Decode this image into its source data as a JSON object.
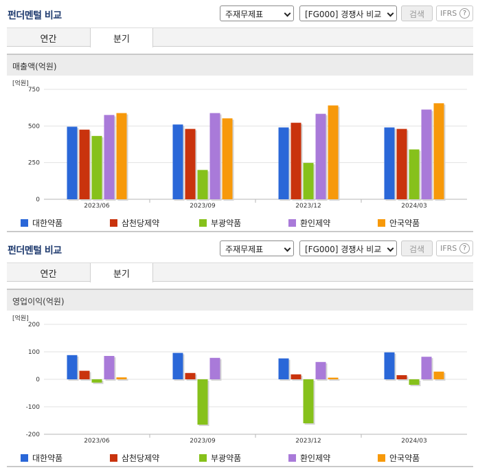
{
  "header": {
    "title": "펀더멘털 비교",
    "select_statement": "주재무제표",
    "select_compare": "[FG000] 경쟁사 비교",
    "search_label": "검색",
    "ifrs_label": "IFRS",
    "help_label": "?"
  },
  "tabs": [
    "연간",
    "분기"
  ],
  "colors": {
    "대한약품": "#2a67d8",
    "삼천당제약": "#c9330d",
    "부광약품": "#86c11b",
    "환인제약": "#a97ad9",
    "안국약품": "#f7990a"
  },
  "chart_data": [
    {
      "type": "bar",
      "title": "매출액(억원)",
      "ylabel": "[억원]",
      "categories": [
        "2023/06",
        "2023/09",
        "2023/12",
        "2024/03"
      ],
      "ylim": [
        0,
        750
      ],
      "yticks": [
        0,
        250,
        500,
        750
      ],
      "grid": true,
      "legend": "bottom",
      "series": [
        {
          "name": "대한약품",
          "values": [
            495,
            510,
            490,
            490
          ]
        },
        {
          "name": "삼천당제약",
          "values": [
            475,
            480,
            522,
            480
          ]
        },
        {
          "name": "부광약품",
          "values": [
            432,
            200,
            248,
            340
          ]
        },
        {
          "name": "환인제약",
          "values": [
            575,
            588,
            583,
            612
          ]
        },
        {
          "name": "안국약품",
          "values": [
            588,
            552,
            640,
            655
          ]
        }
      ]
    },
    {
      "type": "bar",
      "title": "영업이익(억원)",
      "ylabel": "[억원]",
      "categories": [
        "2023/06",
        "2023/09",
        "2023/12",
        "2024/03"
      ],
      "ylim": [
        -200,
        200
      ],
      "yticks": [
        -200,
        -100,
        0,
        100,
        200
      ],
      "grid": true,
      "legend": "bottom",
      "series": [
        {
          "name": "대한약품",
          "values": [
            88,
            96,
            76,
            98
          ]
        },
        {
          "name": "삼천당제약",
          "values": [
            31,
            23,
            18,
            15
          ]
        },
        {
          "name": "부광약품",
          "values": [
            -12,
            -165,
            -160,
            -20
          ]
        },
        {
          "name": "환인제약",
          "values": [
            85,
            78,
            63,
            82
          ]
        },
        {
          "name": "안국약품",
          "values": [
            7,
            0,
            6,
            28
          ]
        }
      ]
    }
  ]
}
